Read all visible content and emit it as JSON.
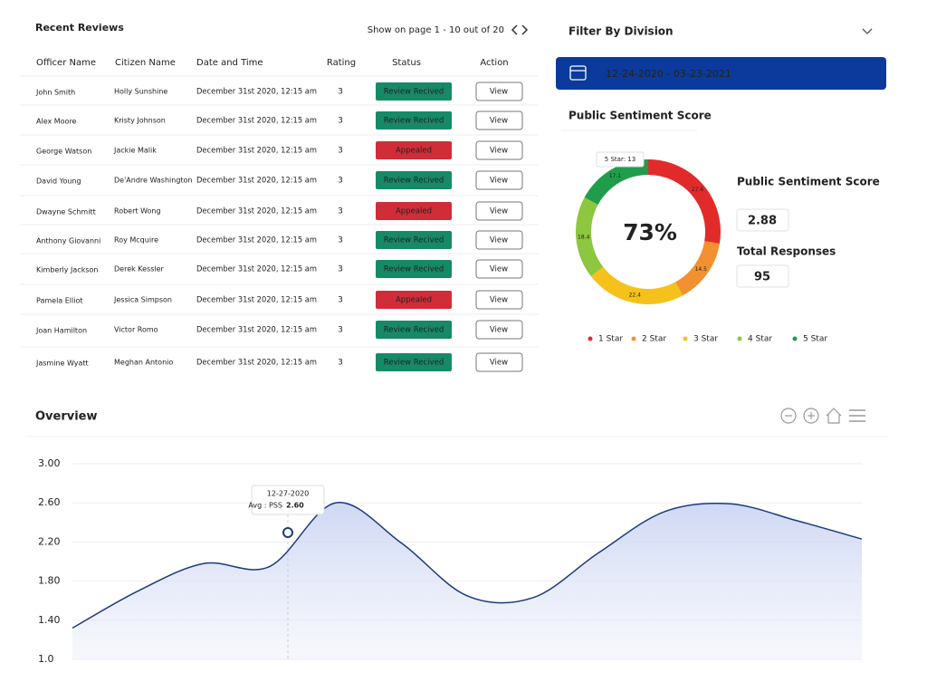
{
  "reviews": {
    "title": "Recent Reviews",
    "pagination": "Show on page 1 - 10 out of 20",
    "columns": [
      "Officer Name",
      "Citizen Name",
      "Date and Time",
      "Rating",
      "Status",
      "Action"
    ],
    "rows": [
      [
        "John Smith",
        "Holly Sunshine",
        "December 31st 2020, 12:15 am",
        "3",
        "Review Recived",
        "View"
      ],
      [
        "Alex Moore",
        "Kristy Johnson",
        "December 31st 2020, 12:15 am",
        "3",
        "Review Recived",
        "View"
      ],
      [
        "George Watson",
        "Jackie Malik",
        "December 31st 2020, 12:15 am",
        "3",
        "Appealed",
        "View"
      ],
      [
        "David Young",
        "De'Andre Washington",
        "December 31st 2020, 12:15 am",
        "3",
        "Review Recived",
        "View"
      ],
      [
        "Dwayne Schmitt",
        "Robert Wong",
        "December 31st 2020, 12:15 am",
        "3",
        "Appealed",
        "View"
      ],
      [
        "Anthony Giovanni",
        "Roy Mcquire",
        "December 31st 2020, 12:15 am",
        "3",
        "Review Recived",
        "View"
      ],
      [
        "Kimberly Jackson",
        "Derek Kessler",
        "December 31st 2020, 12:15 am",
        "3",
        "Review Recived",
        "View"
      ],
      [
        "Pamela Elliot",
        "Jessica Simpson",
        "December 31st 2020, 12:15 am",
        "3",
        "Appealed",
        "View"
      ],
      [
        "Joan Hamilton",
        "Victor Romo",
        "December 31st 2020, 12:15 am",
        "3",
        "Review Recived",
        "View"
      ],
      [
        "Jasmine Wyatt",
        "Meghan Antonio",
        "December 31st 2020, 12:15 am",
        "3",
        "Review Recived",
        "View"
      ]
    ]
  },
  "filter": {
    "title": "Filter By Division",
    "date_range": "12-24-2020 - 03-23-2021"
  },
  "sentiment": {
    "title": "Public Sentiment Score",
    "score_label": "Public Sentiment Score",
    "score": "2.88",
    "responses_label": "Total Responses",
    "responses": "95"
  },
  "overview": {
    "title": "Overview",
    "tooltip": {
      "date": "12-27-2020",
      "label": "Avg : PSS",
      "value": "2.60"
    }
  },
  "chart_data": [
    {
      "type": "donut",
      "center_label": "73%",
      "tooltip": "5 Star: 13",
      "categories": [
        "1 Star",
        "2 Star",
        "3 Star",
        "4 Star",
        "5 Star"
      ],
      "values": [
        27.6,
        14.5,
        22.4,
        18.4,
        17.1
      ],
      "colors": [
        "#e12b2b",
        "#f39130",
        "#f5c21b",
        "#8dc63f",
        "#1f9d4c"
      ]
    },
    {
      "type": "area",
      "categories": [
        null,
        null,
        null,
        null,
        null,
        null,
        null,
        null,
        null,
        null,
        null,
        null,
        null
      ],
      "values": [
        1.32,
        1.7,
        1.98,
        1.95,
        2.6,
        2.19,
        1.65,
        1.63,
        2.09,
        2.51,
        2.59,
        2.42,
        2.23
      ],
      "color": "#1c3b7a",
      "ylim": [
        1,
        3
      ],
      "yticks": [
        {
          "value": 1,
          "label": "1.0"
        },
        {
          "value": 1.4,
          "label": "1.40"
        },
        {
          "value": 1.8,
          "label": "1.80"
        },
        {
          "value": 2.2,
          "label": "2.20"
        },
        {
          "value": 2.6,
          "label": "2.60"
        },
        {
          "value": 3,
          "label": "3.00"
        }
      ],
      "grid": true
    }
  ]
}
